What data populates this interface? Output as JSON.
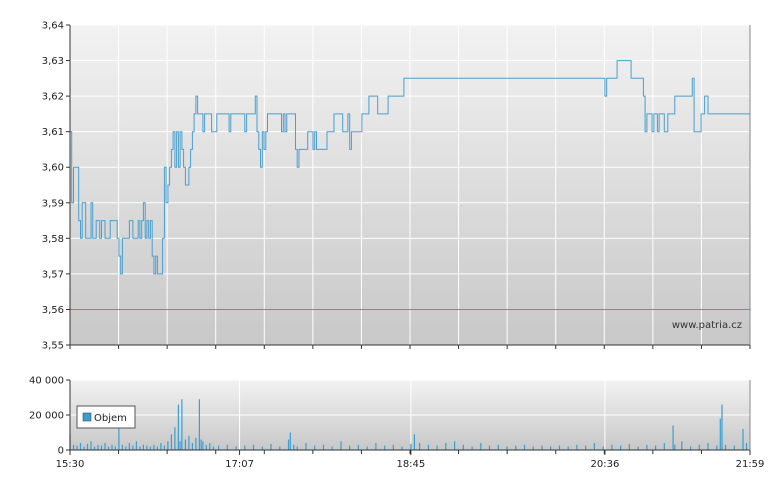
{
  "watermark": "www.patria.cz",
  "legend_label": "Objem",
  "colors": {
    "price_line": "#4a9fd0",
    "reference_line": "#e06060",
    "volume_bar": "#3a9ed0",
    "grid": "#ffffff",
    "axis": "#333333"
  },
  "chart_data": [
    {
      "type": "line",
      "ylim": [
        3.55,
        3.64
      ],
      "y_ticks": [
        "3,55",
        "3,56",
        "3,57",
        "3,58",
        "3,59",
        "3,60",
        "3,61",
        "3,62",
        "3,63",
        "3,64"
      ],
      "reference_value": 3.56,
      "x_ticks": [
        "15:30",
        "17:07",
        "18:45",
        "20:36",
        "21:59"
      ],
      "x_tick_positions_min": [
        0,
        97,
        195,
        306,
        389
      ],
      "xlim_min": [
        0,
        389
      ],
      "series": [
        {
          "values": [
            [
              0,
              3.61
            ],
            [
              1,
              3.59
            ],
            [
              2,
              3.6
            ],
            [
              4,
              3.6
            ],
            [
              5,
              3.585
            ],
            [
              6,
              3.58
            ],
            [
              7,
              3.59
            ],
            [
              9,
              3.58
            ],
            [
              10,
              3.58
            ],
            [
              12,
              3.59
            ],
            [
              13,
              3.58
            ],
            [
              15,
              3.585
            ],
            [
              17,
              3.58
            ],
            [
              18,
              3.585
            ],
            [
              20,
              3.58
            ],
            [
              22,
              3.58
            ],
            [
              23,
              3.585
            ],
            [
              26,
              3.585
            ],
            [
              27,
              3.58
            ],
            [
              28,
              3.575
            ],
            [
              29,
              3.57
            ],
            [
              30,
              3.58
            ],
            [
              31,
              3.58
            ],
            [
              33,
              3.58
            ],
            [
              34,
              3.585
            ],
            [
              36,
              3.58
            ],
            [
              38,
              3.58
            ],
            [
              39,
              3.585
            ],
            [
              40,
              3.58
            ],
            [
              41,
              3.585
            ],
            [
              42,
              3.59
            ],
            [
              43,
              3.58
            ],
            [
              44,
              3.585
            ],
            [
              45,
              3.58
            ],
            [
              46,
              3.585
            ],
            [
              47,
              3.575
            ],
            [
              48,
              3.57
            ],
            [
              49,
              3.575
            ],
            [
              50,
              3.57
            ],
            [
              52,
              3.57
            ],
            [
              53,
              3.58
            ],
            [
              54,
              3.6
            ],
            [
              55,
              3.59
            ],
            [
              56,
              3.595
            ],
            [
              57,
              3.6
            ],
            [
              58,
              3.605
            ],
            [
              59,
              3.61
            ],
            [
              60,
              3.6
            ],
            [
              61,
              3.61
            ],
            [
              62,
              3.6
            ],
            [
              63,
              3.61
            ],
            [
              64,
              3.605
            ],
            [
              65,
              3.6
            ],
            [
              66,
              3.595
            ],
            [
              68,
              3.6
            ],
            [
              69,
              3.605
            ],
            [
              70,
              3.61
            ],
            [
              71,
              3.615
            ],
            [
              72,
              3.62
            ],
            [
              73,
              3.615
            ],
            [
              75,
              3.615
            ],
            [
              76,
              3.61
            ],
            [
              77,
              3.615
            ],
            [
              80,
              3.615
            ],
            [
              81,
              3.61
            ],
            [
              83,
              3.61
            ],
            [
              84,
              3.615
            ],
            [
              90,
              3.615
            ],
            [
              91,
              3.61
            ],
            [
              92,
              3.615
            ],
            [
              99,
              3.615
            ],
            [
              100,
              3.61
            ],
            [
              101,
              3.615
            ],
            [
              105,
              3.615
            ],
            [
              106,
              3.62
            ],
            [
              107,
              3.61
            ],
            [
              108,
              3.605
            ],
            [
              109,
              3.6
            ],
            [
              110,
              3.61
            ],
            [
              111,
              3.605
            ],
            [
              112,
              3.61
            ],
            [
              113,
              3.615
            ],
            [
              120,
              3.615
            ],
            [
              121,
              3.61
            ],
            [
              122,
              3.615
            ],
            [
              123,
              3.61
            ],
            [
              124,
              3.615
            ],
            [
              128,
              3.615
            ],
            [
              129,
              3.605
            ],
            [
              130,
              3.6
            ],
            [
              131,
              3.605
            ],
            [
              135,
              3.605
            ],
            [
              136,
              3.61
            ],
            [
              138,
              3.61
            ],
            [
              139,
              3.605
            ],
            [
              140,
              3.61
            ],
            [
              141,
              3.605
            ],
            [
              146,
              3.605
            ],
            [
              147,
              3.61
            ],
            [
              150,
              3.61
            ],
            [
              151,
              3.615
            ],
            [
              155,
              3.615
            ],
            [
              156,
              3.61
            ],
            [
              158,
              3.61
            ],
            [
              159,
              3.615
            ],
            [
              160,
              3.605
            ],
            [
              161,
              3.61
            ],
            [
              166,
              3.61
            ],
            [
              167,
              3.615
            ],
            [
              170,
              3.615
            ],
            [
              171,
              3.62
            ],
            [
              175,
              3.62
            ],
            [
              176,
              3.615
            ],
            [
              181,
              3.615
            ],
            [
              182,
              3.62
            ],
            [
              190,
              3.62
            ],
            [
              191,
              3.625
            ],
            [
              305,
              3.625
            ],
            [
              306,
              3.62
            ],
            [
              307,
              3.625
            ],
            [
              312,
              3.625
            ],
            [
              313,
              3.63
            ],
            [
              320,
              3.63
            ],
            [
              321,
              3.625
            ],
            [
              327,
              3.625
            ],
            [
              328,
              3.62
            ],
            [
              329,
              3.61
            ],
            [
              330,
              3.615
            ],
            [
              333,
              3.61
            ],
            [
              334,
              3.615
            ],
            [
              336,
              3.61
            ],
            [
              337,
              3.615
            ],
            [
              339,
              3.615
            ],
            [
              340,
              3.61
            ],
            [
              342,
              3.615
            ],
            [
              345,
              3.615
            ],
            [
              346,
              3.62
            ],
            [
              355,
              3.62
            ],
            [
              356,
              3.625
            ],
            [
              357,
              3.61
            ],
            [
              360,
              3.61
            ],
            [
              361,
              3.615
            ],
            [
              363,
              3.62
            ],
            [
              365,
              3.615
            ],
            [
              389,
              3.615
            ]
          ]
        }
      ]
    },
    {
      "type": "bar",
      "ylim": [
        0,
        40000
      ],
      "y_ticks": [
        "0",
        "20 000",
        "40 000"
      ],
      "legend": [
        "Objem"
      ],
      "x_ticks": [
        "15:30",
        "17:07",
        "18:45",
        "20:36",
        "21:59"
      ],
      "x_tick_positions_min": [
        0,
        97,
        195,
        306,
        389
      ],
      "xlim_min": [
        0,
        389
      ],
      "series": [
        {
          "name": "Objem",
          "values": [
            [
              0,
              9000
            ],
            [
              2,
              3000
            ],
            [
              4,
              2500
            ],
            [
              6,
              4000
            ],
            [
              8,
              2000
            ],
            [
              10,
              3500
            ],
            [
              12,
              5000
            ],
            [
              14,
              2000
            ],
            [
              16,
              3000
            ],
            [
              18,
              2500
            ],
            [
              20,
              4000
            ],
            [
              22,
              2000
            ],
            [
              24,
              3000
            ],
            [
              26,
              2000
            ],
            [
              28,
              15000
            ],
            [
              30,
              3000
            ],
            [
              32,
              2000
            ],
            [
              34,
              4000
            ],
            [
              36,
              2500
            ],
            [
              38,
              5000
            ],
            [
              40,
              2000
            ],
            [
              42,
              3000
            ],
            [
              44,
              2500
            ],
            [
              46,
              2000
            ],
            [
              48,
              3000
            ],
            [
              50,
              2000
            ],
            [
              52,
              4000
            ],
            [
              54,
              2500
            ],
            [
              56,
              5000
            ],
            [
              58,
              9000
            ],
            [
              60,
              13000
            ],
            [
              62,
              26000
            ],
            [
              63,
              5000
            ],
            [
              64,
              29000
            ],
            [
              66,
              6000
            ],
            [
              68,
              8000
            ],
            [
              70,
              4000
            ],
            [
              72,
              7000
            ],
            [
              74,
              29000
            ],
            [
              75,
              6000
            ],
            [
              76,
              5000
            ],
            [
              78,
              3000
            ],
            [
              80,
              4000
            ],
            [
              82,
              2000
            ],
            [
              85,
              2500
            ],
            [
              90,
              3000
            ],
            [
              95,
              2000
            ],
            [
              100,
              2500
            ],
            [
              105,
              3000
            ],
            [
              110,
              2000
            ],
            [
              115,
              3500
            ],
            [
              120,
              2000
            ],
            [
              125,
              6000
            ],
            [
              126,
              10000
            ],
            [
              128,
              3000
            ],
            [
              130,
              2000
            ],
            [
              135,
              4000
            ],
            [
              140,
              2500
            ],
            [
              145,
              3000
            ],
            [
              150,
              2000
            ],
            [
              155,
              5000
            ],
            [
              160,
              2500
            ],
            [
              165,
              3000
            ],
            [
              170,
              2000
            ],
            [
              175,
              4000
            ],
            [
              180,
              2500
            ],
            [
              185,
              3000
            ],
            [
              190,
              2000
            ],
            [
              195,
              3500
            ],
            [
              197,
              9000
            ],
            [
              200,
              4000
            ],
            [
              205,
              3000
            ],
            [
              210,
              2500
            ],
            [
              215,
              4000
            ],
            [
              220,
              5000
            ],
            [
              225,
              3000
            ],
            [
              230,
              2000
            ],
            [
              235,
              4000
            ],
            [
              240,
              2500
            ],
            [
              245,
              3000
            ],
            [
              250,
              2000
            ],
            [
              255,
              2500
            ],
            [
              260,
              3000
            ],
            [
              265,
              2000
            ],
            [
              270,
              2500
            ],
            [
              275,
              2000
            ],
            [
              280,
              2500
            ],
            [
              285,
              2000
            ],
            [
              290,
              3000
            ],
            [
              295,
              2500
            ],
            [
              300,
              4000
            ],
            [
              305,
              2000
            ],
            [
              310,
              3000
            ],
            [
              315,
              2500
            ],
            [
              320,
              3500
            ],
            [
              325,
              2000
            ],
            [
              330,
              3000
            ],
            [
              335,
              2500
            ],
            [
              340,
              4000
            ],
            [
              345,
              14000
            ],
            [
              346,
              3000
            ],
            [
              350,
              5000
            ],
            [
              355,
              2000
            ],
            [
              360,
              3000
            ],
            [
              365,
              4000
            ],
            [
              370,
              2500
            ],
            [
              372,
              18000
            ],
            [
              373,
              26000
            ],
            [
              375,
              3000
            ],
            [
              380,
              2500
            ],
            [
              385,
              12000
            ],
            [
              387,
              4000
            ]
          ]
        }
      ]
    }
  ]
}
